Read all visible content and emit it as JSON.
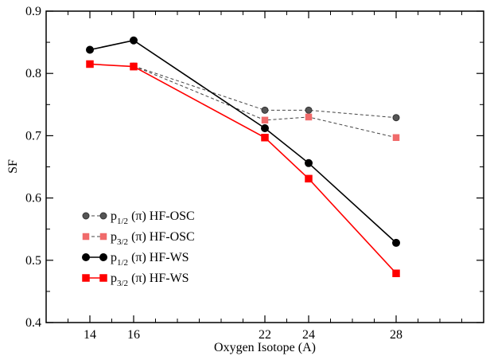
{
  "chart_data": {
    "type": "line",
    "xlabel": "Oxygen Isotope (A)",
    "ylabel": "SF",
    "xlim": [
      12,
      32
    ],
    "ylim": [
      0.4,
      0.9
    ],
    "xticks": [
      14,
      16,
      22,
      24,
      28
    ],
    "yticks": [
      0.4,
      0.5,
      0.6,
      0.7,
      0.8,
      0.9
    ],
    "ytick_labels": [
      "0.4",
      "0.5",
      "0.6",
      "0.7",
      "0.8",
      "0.9"
    ],
    "grid": false,
    "legend_position": "lower-left",
    "series": [
      {
        "key": "p12_osc",
        "label_main": "p",
        "label_sub": "1/2",
        "label_rest": " (π) HF-OSC",
        "color": "#555555",
        "marker": "circle",
        "line": "dashed",
        "x": [
          16,
          22,
          24,
          28
        ],
        "y": [
          0.812,
          0.741,
          0.741,
          0.729
        ]
      },
      {
        "key": "p32_osc",
        "label_main": "p",
        "label_sub": "3/2",
        "label_rest": " (π) HF-OSC",
        "color": "#f06b6b",
        "marker": "square",
        "line": "dashed",
        "x": [
          16,
          22,
          24,
          28
        ],
        "y": [
          0.812,
          0.725,
          0.73,
          0.697
        ]
      },
      {
        "key": "p12_ws",
        "label_main": "p",
        "label_sub": "1/2",
        "label_rest": " (π) HF-WS",
        "color": "#000000",
        "marker": "circle",
        "line": "solid",
        "x": [
          14,
          16,
          22,
          24,
          28
        ],
        "y": [
          0.838,
          0.853,
          0.712,
          0.656,
          0.528
        ]
      },
      {
        "key": "p32_ws",
        "label_main": "p",
        "label_sub": "3/2",
        "label_rest": " (π) HF-WS",
        "color": "#ff0000",
        "marker": "square",
        "line": "solid",
        "x": [
          14,
          16,
          22,
          24,
          28
        ],
        "y": [
          0.815,
          0.811,
          0.697,
          0.631,
          0.479
        ]
      }
    ]
  }
}
